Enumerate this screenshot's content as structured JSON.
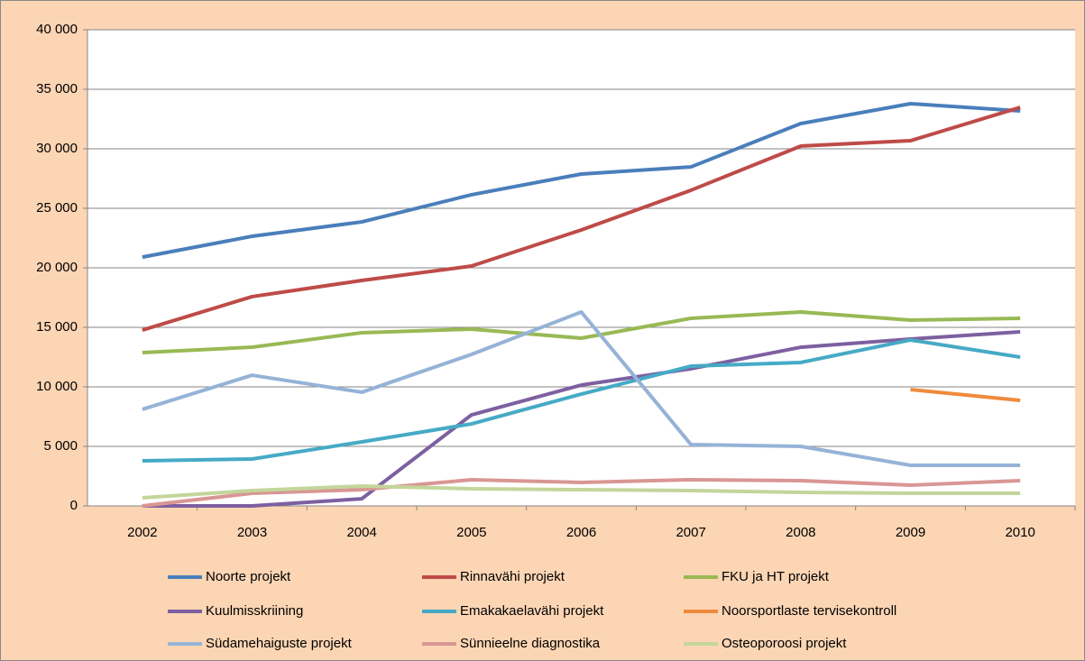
{
  "chart_data": {
    "type": "line",
    "categories": [
      "2002",
      "2003",
      "2004",
      "2005",
      "2006",
      "2007",
      "2008",
      "2009",
      "2010"
    ],
    "series": [
      {
        "name": "Noorte projekt",
        "color": "#4a7ebb",
        "values": [
          20900,
          22650,
          23860,
          26140,
          27880,
          28480,
          32120,
          33790,
          33180
        ]
      },
      {
        "name": "Rinnavähi projekt",
        "color": "#be4b48",
        "values": [
          14770,
          17580,
          18940,
          20150,
          23180,
          26520,
          30230,
          30680,
          33480
        ]
      },
      {
        "name": "FKU ja HT projekt",
        "color": "#98b954",
        "values": [
          12880,
          13330,
          14550,
          14850,
          14090,
          15760,
          16290,
          15610,
          15760
        ]
      },
      {
        "name": "Kuulmisskriining",
        "color": "#7d60a0",
        "values": [
          0,
          0,
          600,
          7650,
          10150,
          11520,
          13330,
          14020,
          14620
        ]
      },
      {
        "name": "Emakakaelavähi  projekt",
        "color": "#46aac5",
        "values": [
          3790,
          3940,
          5380,
          6890,
          9390,
          11740,
          12050,
          13940,
          12500
        ]
      },
      {
        "name": "Noorsportlaste tervisekontroll",
        "color": "#f08a3c",
        "values": [
          null,
          null,
          null,
          null,
          null,
          null,
          null,
          9770,
          8860
        ]
      },
      {
        "name": "Südamehaiguste  projekt",
        "color": "#95b3d7",
        "values": [
          8110,
          10980,
          9550,
          12730,
          16290,
          5150,
          5000,
          3410,
          3410
        ]
      },
      {
        "name": "Sünnieelne diagnostika",
        "color": "#d99694",
        "values": [
          0,
          1060,
          1360,
          2200,
          1970,
          2200,
          2120,
          1740,
          2120
        ]
      },
      {
        "name": "Osteoporoosi projekt",
        "color": "#c3d69b",
        "values": [
          680,
          1290,
          1670,
          1440,
          1360,
          1290,
          1140,
          1060,
          1060
        ]
      }
    ],
    "ylim": [
      0,
      40000
    ],
    "yticks": [
      0,
      {
        "value": 5000,
        "label": "5 000"
      },
      {
        "value": 10000,
        "label": "10 000"
      },
      {
        "value": 15000,
        "label": "15 000"
      },
      {
        "value": 20000,
        "label": "20 000"
      },
      {
        "value": 25000,
        "label": "25 000"
      },
      {
        "value": 30000,
        "label": "30 000"
      },
      {
        "value": 35000,
        "label": "35 000"
      },
      {
        "value": 40000,
        "label": "40 000"
      }
    ],
    "grid": true
  }
}
